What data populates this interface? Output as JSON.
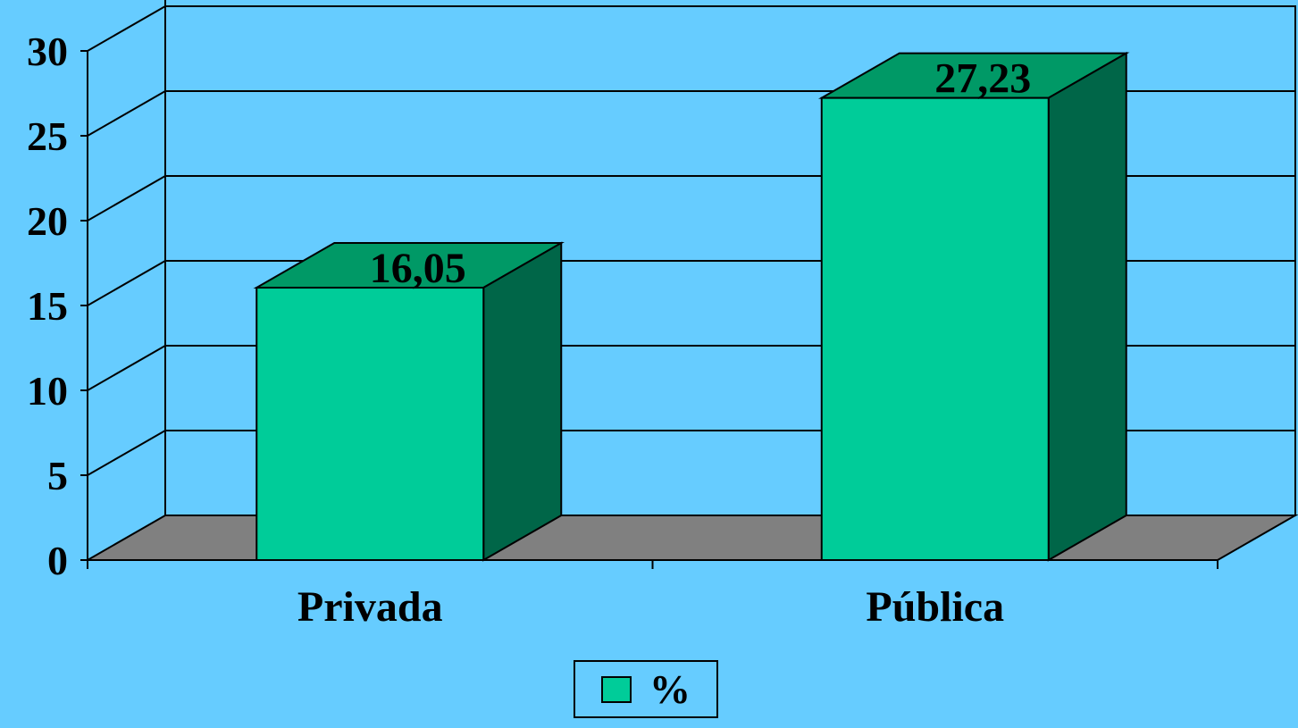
{
  "chart_data": {
    "type": "bar",
    "style": "3d-column",
    "categories": [
      "Privada",
      "Pública"
    ],
    "series": [
      {
        "name": "%",
        "values": [
          16.05,
          27.23
        ]
      }
    ],
    "data_labels": [
      "16,05",
      "27,23"
    ],
    "y_ticks": [
      "0",
      "5",
      "10",
      "15",
      "20",
      "25",
      "30"
    ],
    "ylim": [
      0,
      30
    ],
    "grid": true,
    "legend_position": "bottom-center",
    "colors": {
      "background": "#66CCFF",
      "bar_front": "#00CC99",
      "bar_top": "#009966",
      "bar_side": "#006648",
      "floor": "#808080",
      "lines": "#000000"
    }
  }
}
